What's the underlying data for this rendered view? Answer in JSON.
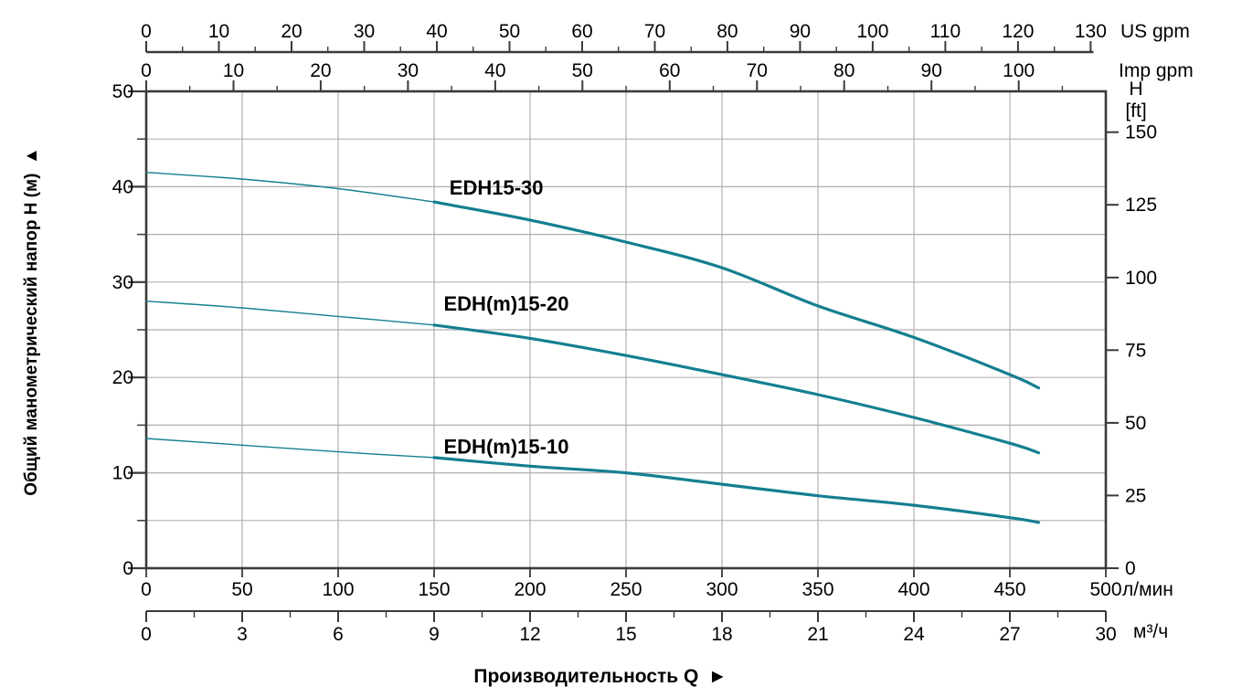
{
  "chart_data": {
    "type": "line",
    "title": "",
    "captions": {
      "x_axis_caption": "Производительность Q",
      "x_axis_arrow": "►",
      "y_axis_caption": "Общий манометрический напор H (м)",
      "y_axis_arrow": "▲"
    },
    "axes": {
      "x_top_usgpm": {
        "label": "US gpm",
        "min": 0,
        "max": 130,
        "major": 10,
        "minor": 5,
        "tick_labels": [
          0,
          10,
          20,
          30,
          40,
          50,
          60,
          70,
          80,
          90,
          100,
          110,
          120,
          130
        ]
      },
      "x_top_impgpm": {
        "label": "Imp gpm",
        "min": 0,
        "max": 100,
        "major": 10,
        "minor": 5,
        "minor_extent": 105,
        "tick_labels": [
          0,
          10,
          20,
          30,
          40,
          50,
          60,
          70,
          80,
          90,
          100
        ]
      },
      "x_bottom_lpm": {
        "label": "л/мин",
        "min": 0,
        "max": 500,
        "major": 50,
        "tick_labels": [
          0,
          50,
          100,
          150,
          200,
          250,
          300,
          350,
          400,
          450,
          500
        ]
      },
      "x_bottom_m3h": {
        "label": "м³/ч",
        "min": 0,
        "max": 30,
        "major": 3,
        "minor": 1.5,
        "tick_labels": [
          0,
          3,
          6,
          9,
          12,
          15,
          18,
          21,
          24,
          27,
          30
        ]
      },
      "y_left_m": {
        "label": "H (м)",
        "min": 0,
        "max": 50,
        "major": 10,
        "minor": 5,
        "tick_labels": [
          0,
          10,
          20,
          30,
          40,
          50
        ]
      },
      "y_right_ft": {
        "label_line1": "H",
        "label_line2": "[ft]",
        "min": 0,
        "max": 150,
        "major": 25,
        "tick_labels": [
          0,
          25,
          50,
          75,
          100,
          125,
          150
        ]
      }
    },
    "grid": {
      "x_step_lpm": 50,
      "y_step_m": 5,
      "visible": true
    },
    "conversions": {
      "lpm_per_usgpm": 3.7854,
      "lpm_per_impgpm": 4.5461,
      "m_per_ft": 0.3048
    },
    "series": [
      {
        "name": "EDH15-30",
        "points_lpm_m": [
          [
            0,
            41.5
          ],
          [
            50,
            40.8
          ],
          [
            100,
            39.8
          ],
          [
            150,
            38.4
          ],
          [
            200,
            36.5
          ],
          [
            250,
            34.2
          ],
          [
            300,
            31.5
          ],
          [
            350,
            27.5
          ],
          [
            400,
            24.2
          ],
          [
            450,
            20.3
          ],
          [
            465,
            18.9
          ]
        ],
        "thin_until_lpm": 150,
        "label_at": {
          "q": 158,
          "h": 39.2
        }
      },
      {
        "name": "EDH(m)15-20",
        "points_lpm_m": [
          [
            0,
            28.0
          ],
          [
            50,
            27.3
          ],
          [
            100,
            26.4
          ],
          [
            150,
            25.5
          ],
          [
            200,
            24.1
          ],
          [
            250,
            22.3
          ],
          [
            300,
            20.3
          ],
          [
            350,
            18.2
          ],
          [
            400,
            15.8
          ],
          [
            450,
            13.1
          ],
          [
            465,
            12.1
          ]
        ],
        "thin_until_lpm": 150,
        "label_at": {
          "q": 155,
          "h": 27.0
        }
      },
      {
        "name": "EDH(m)15-10",
        "points_lpm_m": [
          [
            0,
            13.6
          ],
          [
            50,
            12.9
          ],
          [
            100,
            12.2
          ],
          [
            150,
            11.6
          ],
          [
            200,
            10.7
          ],
          [
            250,
            10.0
          ],
          [
            300,
            8.8
          ],
          [
            350,
            7.6
          ],
          [
            400,
            6.6
          ],
          [
            450,
            5.3
          ],
          [
            465,
            4.8
          ]
        ],
        "thin_until_lpm": 150,
        "label_at": {
          "q": 155,
          "h": 12.0
        }
      }
    ],
    "colors": {
      "curve": "#147f91",
      "grid": "#b0b0b0",
      "axis": "#3a3a3a",
      "text": "#000000",
      "background": "#ffffff"
    }
  }
}
